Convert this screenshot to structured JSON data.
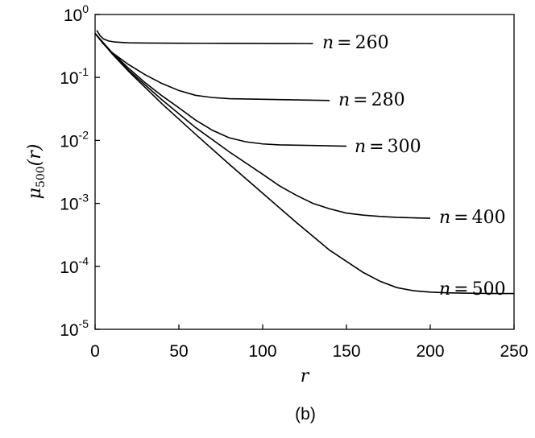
{
  "chart_data": {
    "type": "line",
    "title": "",
    "caption": "(b)",
    "xlabel": "r",
    "ylabel": {
      "base": "μ",
      "subscript": "500",
      "argument": "(r)"
    },
    "xlim": [
      0,
      250
    ],
    "ylim": [
      1e-05,
      1
    ],
    "yscale": "log",
    "grid": false,
    "xticks": [
      {
        "value": 0,
        "label": "0"
      },
      {
        "value": 50,
        "label": "50"
      },
      {
        "value": 100,
        "label": "100"
      },
      {
        "value": 150,
        "label": "150"
      },
      {
        "value": 200,
        "label": "200"
      },
      {
        "value": 250,
        "label": "250"
      }
    ],
    "yticks": [
      {
        "value": 1,
        "base": "10",
        "exp": "0"
      },
      {
        "value": 0.1,
        "base": "10",
        "exp": "-1"
      },
      {
        "value": 0.01,
        "base": "10",
        "exp": "-2"
      },
      {
        "value": 0.001,
        "base": "10",
        "exp": "-3"
      },
      {
        "value": 0.0001,
        "base": "10",
        "exp": "-4"
      },
      {
        "value": 1e-05,
        "base": "10",
        "exp": "-5"
      }
    ],
    "series": [
      {
        "name": "n = 260",
        "label": {
          "var": "n",
          "eq": "=",
          "num": "260"
        },
        "x": [
          1,
          3,
          5,
          8,
          12,
          20,
          30,
          50,
          80,
          110,
          130
        ],
        "y": [
          0.56,
          0.46,
          0.41,
          0.38,
          0.365,
          0.355,
          0.352,
          0.35,
          0.348,
          0.346,
          0.345
        ]
      },
      {
        "name": "n = 280",
        "label": {
          "var": "n",
          "eq": "=",
          "num": "280"
        },
        "x": [
          0,
          5,
          10,
          20,
          30,
          40,
          50,
          60,
          70,
          80,
          100,
          120,
          140
        ],
        "y": [
          0.5,
          0.34,
          0.25,
          0.16,
          0.11,
          0.08,
          0.062,
          0.052,
          0.048,
          0.046,
          0.045,
          0.044,
          0.043
        ]
      },
      {
        "name": "n = 300",
        "label": {
          "var": "n",
          "eq": "=",
          "num": "300"
        },
        "x": [
          0,
          10,
          20,
          30,
          40,
          50,
          60,
          70,
          80,
          90,
          100,
          110,
          120,
          130,
          150
        ],
        "y": [
          0.5,
          0.25,
          0.14,
          0.082,
          0.051,
          0.033,
          0.021,
          0.0145,
          0.011,
          0.0095,
          0.0088,
          0.0085,
          0.0084,
          0.0083,
          0.0081
        ]
      },
      {
        "name": "n = 400",
        "label": {
          "var": "n",
          "eq": "=",
          "num": "400"
        },
        "x": [
          0,
          10,
          20,
          40,
          60,
          80,
          100,
          110,
          120,
          130,
          140,
          150,
          160,
          170,
          180,
          190,
          200
        ],
        "y": [
          0.5,
          0.245,
          0.13,
          0.044,
          0.016,
          0.0066,
          0.0029,
          0.0019,
          0.00135,
          0.001,
          0.00082,
          0.0007,
          0.00065,
          0.00062,
          0.0006,
          0.00059,
          0.00058
        ]
      },
      {
        "name": "n = 500",
        "label": {
          "var": "n",
          "eq": "=",
          "num": "500"
        },
        "x": [
          0,
          10,
          20,
          40,
          60,
          80,
          100,
          120,
          140,
          160,
          170,
          180,
          190,
          200,
          210,
          220,
          230,
          240,
          250
        ],
        "y": [
          0.5,
          0.24,
          0.125,
          0.038,
          0.0125,
          0.0042,
          0.00145,
          0.0005,
          0.00018,
          8e-05,
          5.8e-05,
          4.6e-05,
          4.1e-05,
          3.9e-05,
          3.8e-05,
          3.75e-05,
          3.72e-05,
          3.7e-05,
          3.7e-05
        ]
      }
    ]
  }
}
